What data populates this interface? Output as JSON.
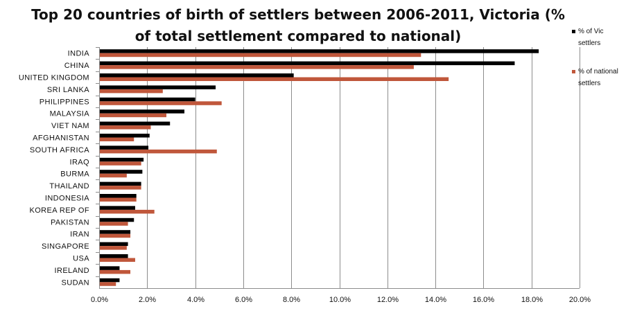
{
  "chart_data": {
    "type": "bar",
    "orientation": "horizontal",
    "title": "Top 20 countries of birth of settlers between 2006-2011, Victoria (% of total settlement compared to national)",
    "categories": [
      "INDIA",
      "CHINA",
      "UNITED KINGDOM",
      "SRI LANKA",
      "PHILIPPINES",
      "MALAYSIA",
      "VIET NAM",
      "AFGHANISTAN",
      "SOUTH AFRICA",
      "IRAQ",
      "BURMA",
      "THAILAND",
      "INDONESIA",
      "KOREA REP OF",
      "PAKISTAN",
      "IRAN",
      "SINGAPORE",
      "USA",
      "IRELAND",
      "SUDAN"
    ],
    "series": [
      {
        "name": "% of Vic settlers",
        "color": "#000000",
        "values": [
          18.3,
          17.3,
          8.1,
          4.85,
          4.0,
          3.55,
          2.95,
          2.1,
          2.05,
          1.85,
          1.8,
          1.75,
          1.55,
          1.5,
          1.45,
          1.3,
          1.2,
          1.2,
          0.85,
          0.85
        ]
      },
      {
        "name": "% of national settlers",
        "color": "#c0573b",
        "values": [
          13.4,
          13.1,
          14.55,
          2.65,
          5.1,
          2.8,
          2.15,
          1.45,
          4.9,
          1.75,
          1.15,
          1.75,
          1.55,
          2.3,
          1.2,
          1.3,
          1.15,
          1.5,
          1.3,
          0.7
        ]
      }
    ],
    "xlim": [
      0,
      20
    ],
    "xticks": [
      "0.0%",
      "2.0%",
      "4.0%",
      "6.0%",
      "8.0%",
      "10.0%",
      "12.0%",
      "14.0%",
      "16.0%",
      "18.0%",
      "20.0%"
    ],
    "grid": "vertical",
    "legend_position": "right",
    "xlabel": "",
    "ylabel": ""
  }
}
